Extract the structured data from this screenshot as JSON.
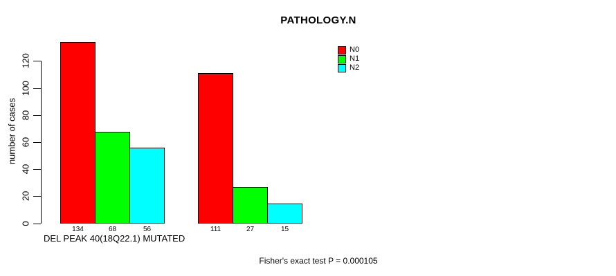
{
  "page": {
    "background_color": "#ffffff",
    "text_color": "#000000"
  },
  "chart_data": {
    "type": "bar",
    "title": "PATHOLOGY.N",
    "xlabel": "DEL PEAK 40(18Q22.1) MUTATED",
    "ylabel": "number of cases",
    "ylim": [
      0,
      120
    ],
    "yticks": [
      0,
      20,
      40,
      60,
      80,
      100,
      120
    ],
    "grid": false,
    "legend_position": "top-right-inside",
    "groups": [
      {
        "bars": [
          134,
          68,
          56
        ]
      },
      {
        "bars": [
          111,
          27,
          15
        ]
      }
    ],
    "series": [
      {
        "name": "N0",
        "color": "#ff0000",
        "values": [
          134,
          111
        ]
      },
      {
        "name": "N1",
        "color": "#00ff00",
        "values": [
          68,
          27
        ]
      },
      {
        "name": "N2",
        "color": "#00ffff",
        "values": [
          56,
          15
        ]
      }
    ],
    "bar_value_labels_shown": true,
    "annotation": "Fisher's exact test P = 0.000105"
  }
}
